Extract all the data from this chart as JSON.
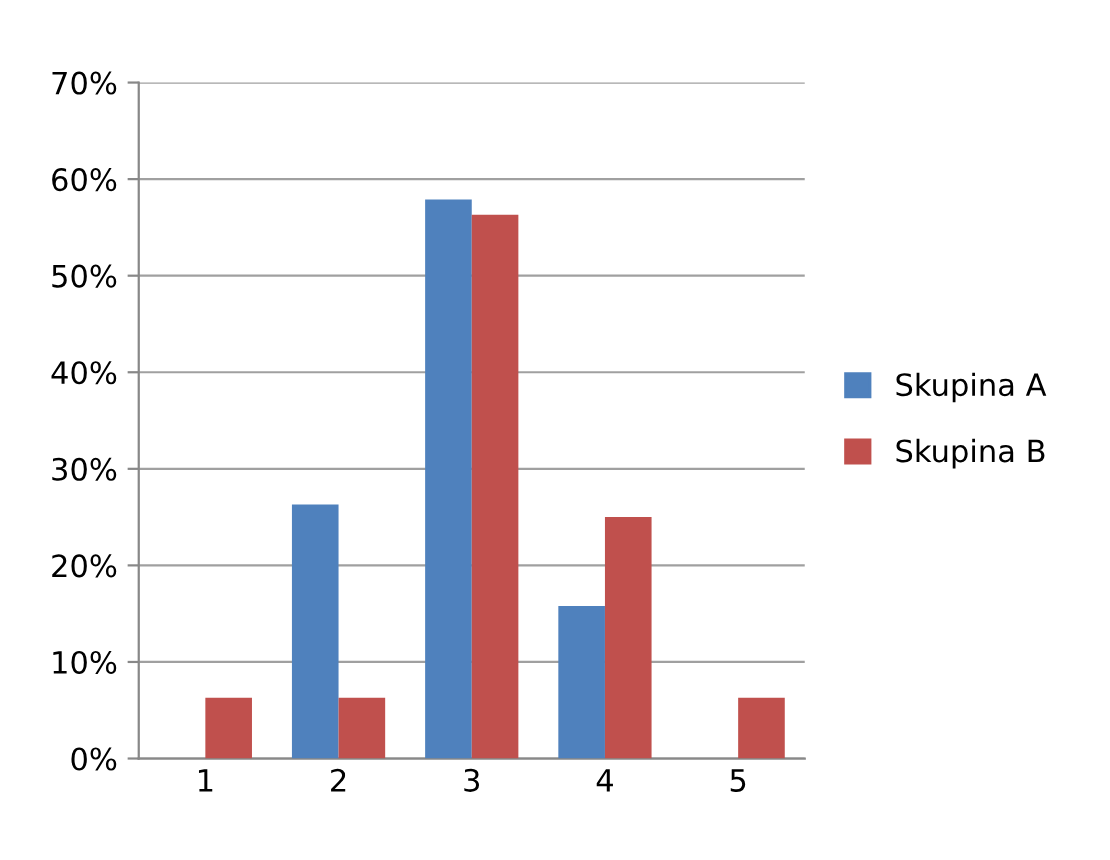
{
  "chart_data": {
    "type": "bar",
    "categories": [
      "1",
      "2",
      "3",
      "4",
      "5"
    ],
    "series": [
      {
        "name": "Skupina A",
        "color": "#4f81bd",
        "values": [
          0,
          26.3,
          57.9,
          15.8,
          0
        ]
      },
      {
        "name": "Skupina B",
        "color": "#c0504d",
        "values": [
          6.3,
          6.3,
          56.3,
          25,
          6.3
        ]
      }
    ],
    "ylim": [
      0,
      70
    ],
    "yticks": [
      {
        "value": 0,
        "label": "0%"
      },
      {
        "value": 10,
        "label": "10%"
      },
      {
        "value": 20,
        "label": "20%"
      },
      {
        "value": 30,
        "label": "30%"
      },
      {
        "value": 40,
        "label": "40%"
      },
      {
        "value": 50,
        "label": "50%"
      },
      {
        "value": 60,
        "label": "60%"
      },
      {
        "value": 70,
        "label": "70%"
      }
    ],
    "grid": "y",
    "legend": "right"
  }
}
